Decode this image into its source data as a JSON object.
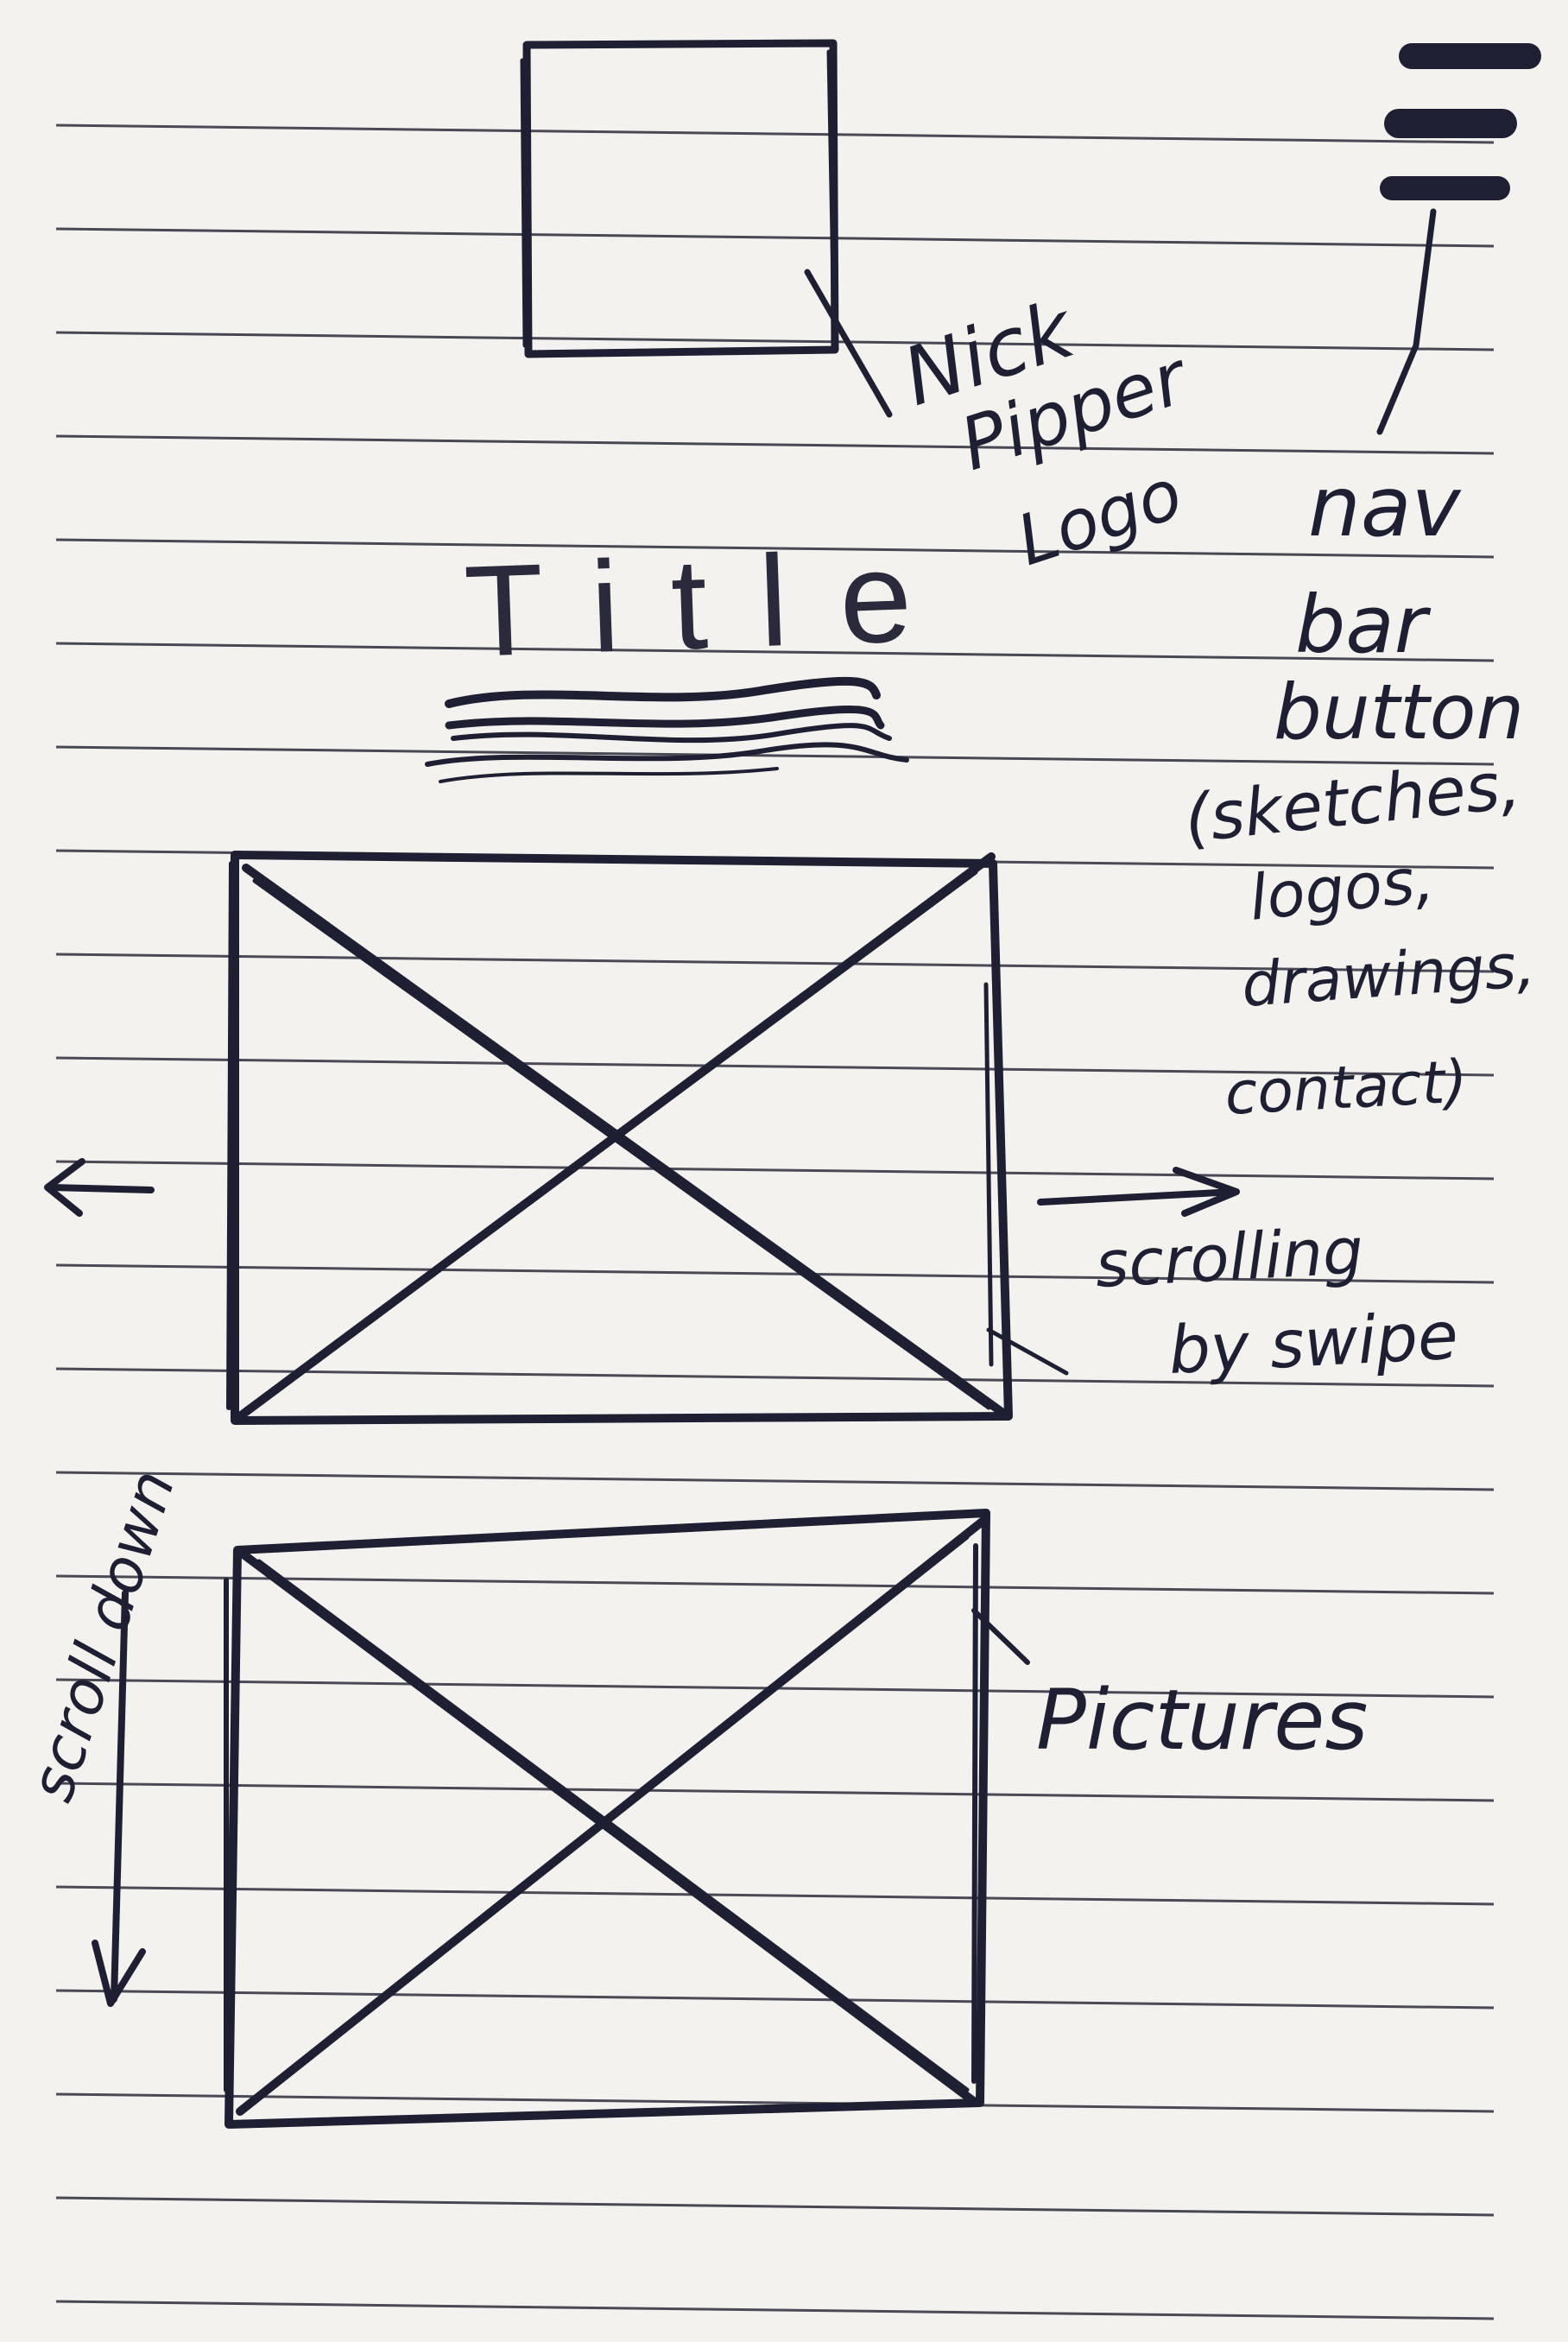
{
  "sketch": {
    "logo_annotation": [
      "Nick",
      "Pipper",
      "Logo"
    ],
    "title": "Title",
    "nav_annotation": [
      "nav",
      "bar",
      "button",
      "(sketches,",
      "logos,",
      "drawings,",
      "contact)"
    ],
    "swipe_annotation": [
      "scrolling",
      "by swipe"
    ],
    "scroll_annotation": "scroll down",
    "pictures_annotation": "Pictures"
  },
  "colors": {
    "paper": "#f4f2ee",
    "rule_line": "#2b2b3a",
    "ink": "#1f1f33"
  },
  "icons": {
    "nav": "hamburger-menu-icon",
    "left_arrow": "arrow-left-icon",
    "right_arrow": "arrow-right-icon",
    "down_arrow": "arrow-down-icon"
  }
}
